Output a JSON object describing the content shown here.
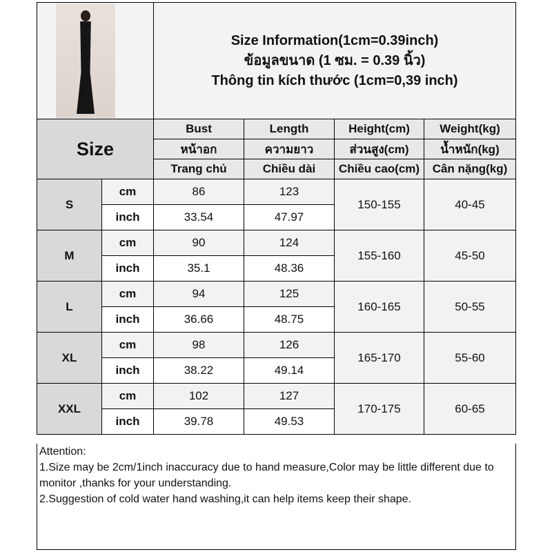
{
  "title_lines": [
    "Size Information(1cm=0.39inch)",
    "ข้อมูลขนาด (1 ซม. = 0.39 นิ้ว)",
    "Thông tin kích thước (1cm=0,39 inch)"
  ],
  "size_label": "Size",
  "columns": [
    {
      "en": "Bust",
      "th": "หน้าอก",
      "vi": "Trang chủ"
    },
    {
      "en": "Length",
      "th": "ความยาว",
      "vi": "Chiều dài"
    },
    {
      "en": "Height(cm)",
      "th": "ส่วนสูง(cm)",
      "vi": "Chiều cao(cm)"
    },
    {
      "en": "Weight(kg)",
      "th": "น้ำหนัก(kg)",
      "vi": "Cân nặng(kg)"
    }
  ],
  "units": {
    "cm": "cm",
    "inch": "inch"
  },
  "rows": [
    {
      "size": "S",
      "cm": [
        "86",
        "123"
      ],
      "inch": [
        "33.54",
        "47.97"
      ],
      "height": "150-155",
      "weight": "40-45"
    },
    {
      "size": "M",
      "cm": [
        "90",
        "124"
      ],
      "inch": [
        "35.1",
        "48.36"
      ],
      "height": "155-160",
      "weight": "45-50"
    },
    {
      "size": "L",
      "cm": [
        "94",
        "125"
      ],
      "inch": [
        "36.66",
        "48.75"
      ],
      "height": "160-165",
      "weight": "50-55"
    },
    {
      "size": "XL",
      "cm": [
        "98",
        "126"
      ],
      "inch": [
        "38.22",
        "49.14"
      ],
      "height": "165-170",
      "weight": "55-60"
    },
    {
      "size": "XXL",
      "cm": [
        "102",
        "127"
      ],
      "inch": [
        "39.78",
        "49.53"
      ],
      "height": "170-175",
      "weight": "60-65"
    }
  ],
  "attention": [
    "Attention:",
    "1.Size may be 2cm/1inch inaccuracy due to hand measure,Color may be little different due to monitor ,thanks for your understanding.",
    "2.Suggestion of cold water hand washing,it can help items keep their shape."
  ]
}
